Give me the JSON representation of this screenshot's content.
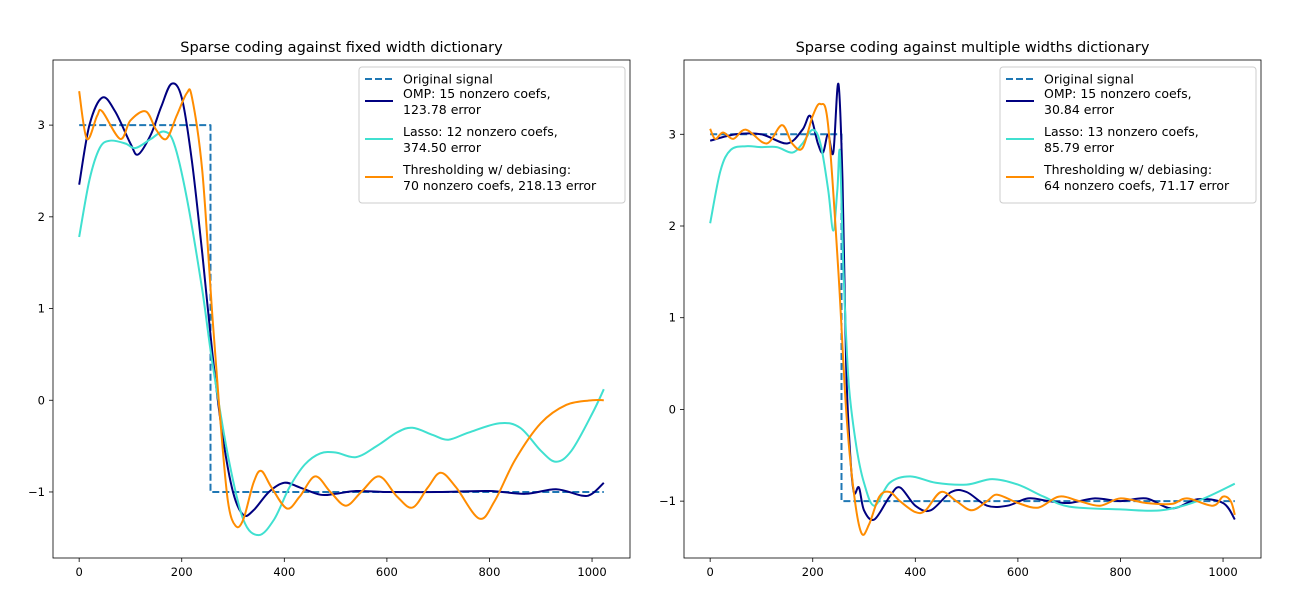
{
  "chart_data": [
    {
      "type": "line",
      "title": "Sparse coding against fixed width dictionary",
      "xlim": [
        -51,
        1074
      ],
      "ylim": [
        -1.72,
        3.71
      ],
      "xticks": [
        0,
        200,
        400,
        600,
        800,
        1000
      ],
      "yticks": [
        -1,
        0,
        1,
        2,
        3
      ],
      "grid": false,
      "legend_position": "top-right",
      "series": [
        {
          "name": "Original signal",
          "color": "#1f77b4",
          "style": "dashed",
          "points": [
            [
              0,
              3
            ],
            [
              256,
              3
            ],
            [
              256,
              -1
            ],
            [
              1023,
              -1
            ]
          ]
        },
        {
          "name": "OMP: 15 nonzero coefs,\n123.78 error",
          "color": "#000080",
          "style": "solid",
          "points": [
            [
              0,
              2.35
            ],
            [
              20,
              3.0
            ],
            [
              45,
              3.3
            ],
            [
              70,
              3.15
            ],
            [
              100,
              2.8
            ],
            [
              115,
              2.68
            ],
            [
              140,
              2.9
            ],
            [
              160,
              3.2
            ],
            [
              180,
              3.45
            ],
            [
              200,
              3.3
            ],
            [
              220,
              2.6
            ],
            [
              240,
              1.6
            ],
            [
              260,
              0.5
            ],
            [
              280,
              -0.4
            ],
            [
              300,
              -1.0
            ],
            [
              320,
              -1.25
            ],
            [
              340,
              -1.2
            ],
            [
              370,
              -1.0
            ],
            [
              400,
              -0.9
            ],
            [
              430,
              -0.95
            ],
            [
              470,
              -1.03
            ],
            [
              500,
              -1.02
            ],
            [
              540,
              -0.99
            ],
            [
              600,
              -1.0
            ],
            [
              700,
              -1.0
            ],
            [
              800,
              -0.99
            ],
            [
              870,
              -1.02
            ],
            [
              930,
              -0.97
            ],
            [
              980,
              -1.04
            ],
            [
              1000,
              -1.02
            ],
            [
              1023,
              -0.9
            ]
          ]
        },
        {
          "name": "Lasso: 12 nonzero coefs,\n374.50 error",
          "color": "#40e0d0",
          "style": "solid",
          "points": [
            [
              0,
              1.78
            ],
            [
              20,
              2.4
            ],
            [
              40,
              2.75
            ],
            [
              60,
              2.83
            ],
            [
              90,
              2.8
            ],
            [
              110,
              2.75
            ],
            [
              140,
              2.85
            ],
            [
              165,
              2.93
            ],
            [
              185,
              2.8
            ],
            [
              210,
              2.2
            ],
            [
              240,
              1.2
            ],
            [
              260,
              0.4
            ],
            [
              290,
              -0.6
            ],
            [
              320,
              -1.3
            ],
            [
              350,
              -1.47
            ],
            [
              380,
              -1.3
            ],
            [
              410,
              -0.95
            ],
            [
              440,
              -0.7
            ],
            [
              470,
              -0.58
            ],
            [
              500,
              -0.57
            ],
            [
              540,
              -0.62
            ],
            [
              580,
              -0.5
            ],
            [
              620,
              -0.35
            ],
            [
              650,
              -0.3
            ],
            [
              690,
              -0.38
            ],
            [
              720,
              -0.43
            ],
            [
              760,
              -0.35
            ],
            [
              820,
              -0.25
            ],
            [
              860,
              -0.3
            ],
            [
              900,
              -0.55
            ],
            [
              930,
              -0.67
            ],
            [
              960,
              -0.55
            ],
            [
              1000,
              -0.15
            ],
            [
              1023,
              0.12
            ]
          ]
        },
        {
          "name": "Thresholding w/ debiasing:\n70 nonzero coefs, 218.13 error",
          "color": "#ff8c00",
          "style": "solid",
          "points": [
            [
              0,
              3.37
            ],
            [
              15,
              2.85
            ],
            [
              35,
              3.1
            ],
            [
              45,
              3.15
            ],
            [
              80,
              2.85
            ],
            [
              100,
              3.05
            ],
            [
              130,
              3.15
            ],
            [
              150,
              2.95
            ],
            [
              170,
              2.85
            ],
            [
              190,
              3.1
            ],
            [
              210,
              3.35
            ],
            [
              220,
              3.3
            ],
            [
              240,
              2.5
            ],
            [
              260,
              0.9
            ],
            [
              275,
              -0.2
            ],
            [
              290,
              -1.1
            ],
            [
              305,
              -1.37
            ],
            [
              320,
              -1.3
            ],
            [
              340,
              -0.9
            ],
            [
              355,
              -0.77
            ],
            [
              375,
              -0.95
            ],
            [
              405,
              -1.18
            ],
            [
              430,
              -1.05
            ],
            [
              460,
              -0.83
            ],
            [
              490,
              -1.0
            ],
            [
              520,
              -1.15
            ],
            [
              550,
              -1.0
            ],
            [
              585,
              -0.83
            ],
            [
              620,
              -1.05
            ],
            [
              650,
              -1.17
            ],
            [
              680,
              -0.95
            ],
            [
              705,
              -0.79
            ],
            [
              735,
              -0.95
            ],
            [
              780,
              -1.29
            ],
            [
              810,
              -1.1
            ],
            [
              850,
              -0.65
            ],
            [
              900,
              -0.25
            ],
            [
              950,
              -0.05
            ],
            [
              1000,
              0.0
            ],
            [
              1023,
              0.0
            ]
          ]
        }
      ]
    },
    {
      "type": "line",
      "title": "Sparse coding against multiple widths dictionary",
      "xlim": [
        -51,
        1074
      ],
      "ylim": [
        -1.62,
        3.81
      ],
      "xticks": [
        0,
        200,
        400,
        600,
        800,
        1000
      ],
      "yticks": [
        -1,
        0,
        1,
        2,
        3
      ],
      "grid": false,
      "legend_position": "top-right",
      "series": [
        {
          "name": "Original signal",
          "color": "#1f77b4",
          "style": "dashed",
          "points": [
            [
              0,
              3
            ],
            [
              256,
              3
            ],
            [
              256,
              -1
            ],
            [
              1023,
              -1
            ]
          ]
        },
        {
          "name": "OMP: 15 nonzero coefs,\n30.84 error",
          "color": "#000080",
          "style": "solid",
          "points": [
            [
              0,
              2.93
            ],
            [
              50,
              3.0
            ],
            [
              100,
              3.0
            ],
            [
              150,
              2.9
            ],
            [
              180,
              3.05
            ],
            [
              195,
              3.2
            ],
            [
              210,
              2.9
            ],
            [
              220,
              2.8
            ],
            [
              230,
              3.0
            ],
            [
              240,
              2.8
            ],
            [
              250,
              3.55
            ],
            [
              258,
              2.5
            ],
            [
              265,
              0.5
            ],
            [
              272,
              -0.4
            ],
            [
              280,
              -0.9
            ],
            [
              290,
              -0.85
            ],
            [
              300,
              -1.1
            ],
            [
              320,
              -1.2
            ],
            [
              350,
              -0.95
            ],
            [
              370,
              -0.85
            ],
            [
              400,
              -1.05
            ],
            [
              430,
              -1.1
            ],
            [
              470,
              -0.9
            ],
            [
              500,
              -0.9
            ],
            [
              540,
              -1.05
            ],
            [
              580,
              -1.05
            ],
            [
              620,
              -0.97
            ],
            [
              660,
              -1.0
            ],
            [
              700,
              -1.02
            ],
            [
              750,
              -0.97
            ],
            [
              800,
              -1.0
            ],
            [
              850,
              -0.97
            ],
            [
              900,
              -1.08
            ],
            [
              950,
              -0.98
            ],
            [
              1000,
              -1.02
            ],
            [
              1023,
              -1.2
            ]
          ]
        },
        {
          "name": "Lasso: 13 nonzero coefs,\n85.79 error",
          "color": "#40e0d0",
          "style": "solid",
          "points": [
            [
              0,
              2.03
            ],
            [
              20,
              2.6
            ],
            [
              40,
              2.83
            ],
            [
              70,
              2.87
            ],
            [
              100,
              2.86
            ],
            [
              130,
              2.86
            ],
            [
              160,
              2.8
            ],
            [
              180,
              2.9
            ],
            [
              200,
              3.05
            ],
            [
              215,
              2.9
            ],
            [
              230,
              2.4
            ],
            [
              240,
              1.95
            ],
            [
              248,
              2.4
            ],
            [
              253,
              2.8
            ],
            [
              260,
              1.5
            ],
            [
              270,
              0.3
            ],
            [
              285,
              -0.4
            ],
            [
              300,
              -0.8
            ],
            [
              320,
              -1.05
            ],
            [
              350,
              -0.8
            ],
            [
              390,
              -0.73
            ],
            [
              440,
              -0.8
            ],
            [
              500,
              -0.82
            ],
            [
              550,
              -0.76
            ],
            [
              600,
              -0.82
            ],
            [
              650,
              -0.95
            ],
            [
              700,
              -1.06
            ],
            [
              800,
              -1.09
            ],
            [
              880,
              -1.1
            ],
            [
              950,
              -1.0
            ],
            [
              1023,
              -0.81
            ]
          ]
        },
        {
          "name": "Thresholding w/ debiasing:\n64 nonzero coefs, 71.17 error",
          "color": "#ff8c00",
          "style": "solid",
          "points": [
            [
              0,
              3.06
            ],
            [
              10,
              2.95
            ],
            [
              25,
              3.02
            ],
            [
              45,
              2.95
            ],
            [
              70,
              3.05
            ],
            [
              110,
              2.9
            ],
            [
              140,
              3.1
            ],
            [
              160,
              2.9
            ],
            [
              180,
              2.85
            ],
            [
              200,
              3.2
            ],
            [
              215,
              3.33
            ],
            [
              230,
              3.1
            ],
            [
              250,
              1.5
            ],
            [
              265,
              0.0
            ],
            [
              280,
              -0.9
            ],
            [
              295,
              -1.35
            ],
            [
              310,
              -1.25
            ],
            [
              330,
              -0.95
            ],
            [
              350,
              -0.9
            ],
            [
              370,
              -1.0
            ],
            [
              400,
              -1.12
            ],
            [
              420,
              -1.1
            ],
            [
              450,
              -0.9
            ],
            [
              480,
              -1.0
            ],
            [
              510,
              -1.1
            ],
            [
              540,
              -1.0
            ],
            [
              560,
              -0.93
            ],
            [
              600,
              -1.02
            ],
            [
              640,
              -1.07
            ],
            [
              680,
              -0.95
            ],
            [
              720,
              -1.0
            ],
            [
              760,
              -1.05
            ],
            [
              800,
              -0.97
            ],
            [
              850,
              -1.02
            ],
            [
              900,
              -1.03
            ],
            [
              930,
              -0.97
            ],
            [
              980,
              -1.05
            ],
            [
              1000,
              -0.95
            ],
            [
              1015,
              -1.0
            ],
            [
              1023,
              -1.15
            ]
          ]
        }
      ]
    }
  ]
}
